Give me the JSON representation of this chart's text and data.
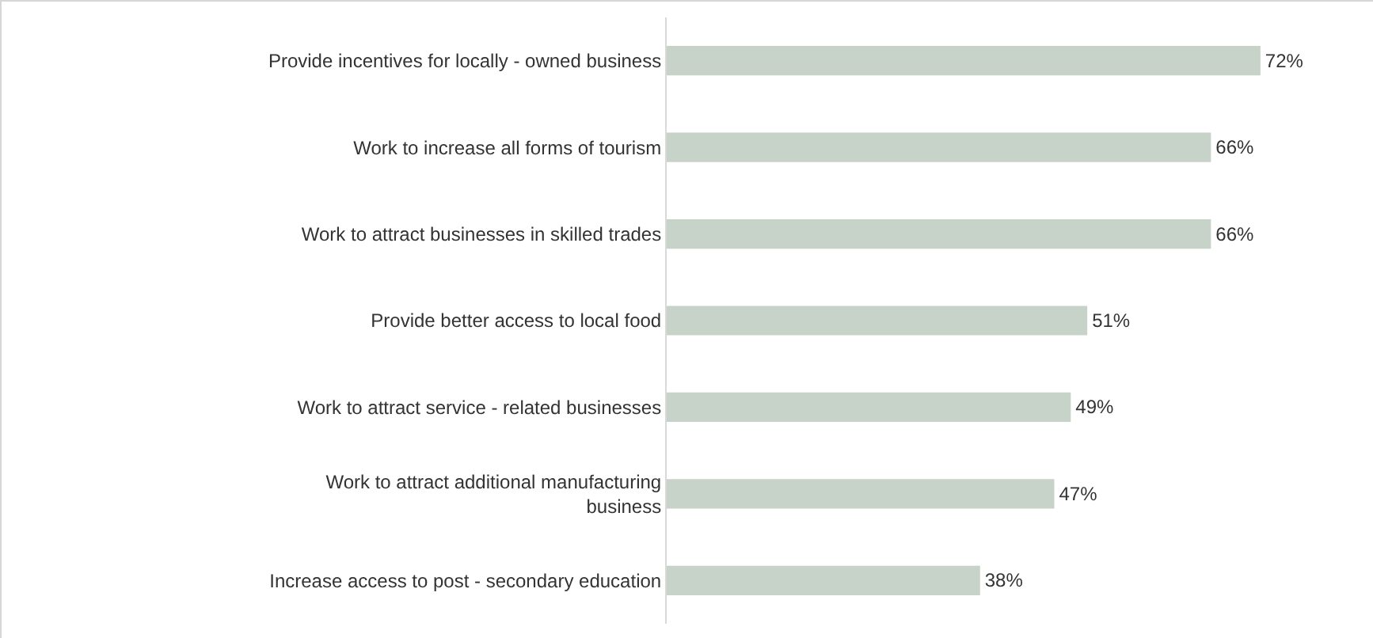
{
  "chart_data": {
    "type": "bar",
    "orientation": "horizontal",
    "categories": [
      "Provide incentives for locally - owned business",
      "Work to increase all forms of tourism",
      "Work to attract businesses in skilled trades",
      "Provide better access to local food",
      "Work to attract service - related businesses",
      "Work to attract additional manufacturing business",
      "Increase access to post - secondary education"
    ],
    "values": [
      72,
      66,
      66,
      51,
      49,
      47,
      38
    ],
    "value_labels": [
      "72%",
      "66%",
      "66%",
      "51%",
      "49%",
      "47%",
      "38%"
    ],
    "color": "#c7d2c8"
  }
}
